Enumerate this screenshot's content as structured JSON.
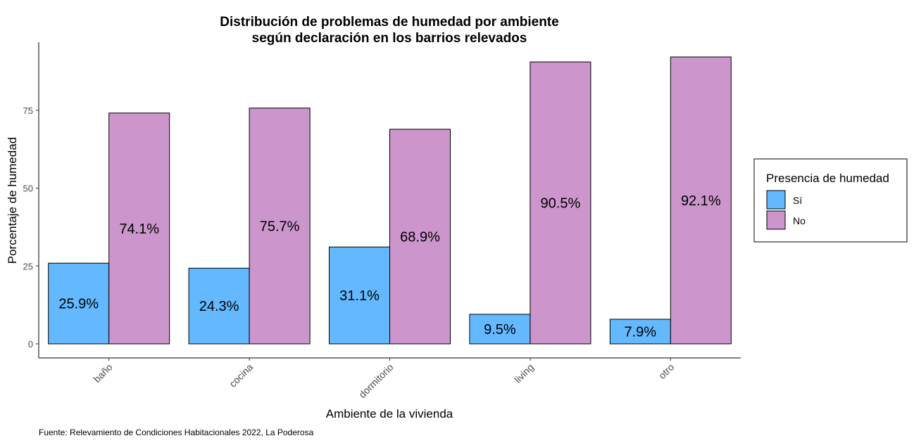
{
  "chart_data": {
    "type": "bar",
    "title": "Distribución de problemas de humedad por ambiente",
    "subtitle": "según declaración en los barrios relevados",
    "xlabel": "Ambiente de la vivienda",
    "ylabel": "Porcentaje de humedad",
    "caption": "Fuente: Relevamiento de Condiciones Habitacionales 2022, La Poderosa",
    "categories": [
      "baño",
      "cocina",
      "dormitorio",
      "living",
      "otro"
    ],
    "series": [
      {
        "name": "Sí",
        "color": "#63b8fe",
        "values": [
          25.9,
          24.3,
          31.1,
          9.5,
          7.9
        ],
        "labels": [
          "25.9%",
          "24.3%",
          "31.1%",
          "9.5%",
          "7.9%"
        ]
      },
      {
        "name": "No",
        "color": "#cc95cc",
        "values": [
          74.1,
          75.7,
          68.9,
          90.5,
          92.1
        ],
        "labels": [
          "74.1%",
          "75.7%",
          "68.9%",
          "90.5%",
          "92.1%"
        ]
      }
    ],
    "yticks": [
      0,
      25,
      50,
      75
    ],
    "ylim": [
      -4.6,
      96.7
    ],
    "legend_title": "Presencia de humedad",
    "legend_position": "right",
    "grid": false
  }
}
